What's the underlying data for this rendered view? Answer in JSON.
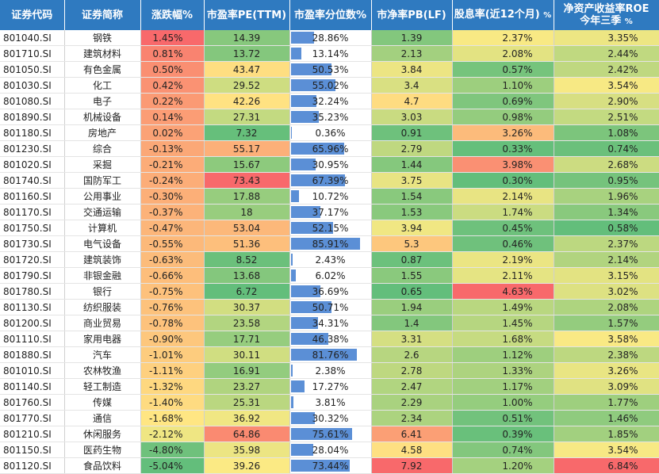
{
  "headers": {
    "code": "证券代码",
    "name": "证券简称",
    "chg": "涨跌幅%",
    "pe": "市盈率PE(TTM)",
    "pe_pct": "市盈率分位数%",
    "pb": "市净率PB(LF)",
    "div": "股息率(近12个月)",
    "div_unit": "%",
    "roe_line1": "净资产收益率ROE",
    "roe_line2": "今年三季",
    "roe_unit": "%"
  },
  "rows": [
    {
      "code": "801040.SI",
      "name": "钢铁",
      "chg": "1.45%",
      "chg_v": 1.45,
      "pe": "14.39",
      "pe_v": 14.39,
      "pct": "28.86%",
      "pct_v": 28.86,
      "pb": "1.39",
      "pb_v": 1.39,
      "div": "2.37%",
      "div_v": 2.37,
      "roe": "3.35%",
      "roe_v": 3.35
    },
    {
      "code": "801710.SI",
      "name": "建筑材料",
      "chg": "0.81%",
      "chg_v": 0.81,
      "pe": "13.72",
      "pe_v": 13.72,
      "pct": "13.14%",
      "pct_v": 13.14,
      "pb": "2.13",
      "pb_v": 2.13,
      "div": "2.08%",
      "div_v": 2.08,
      "roe": "2.44%",
      "roe_v": 2.44
    },
    {
      "code": "801050.SI",
      "name": "有色金属",
      "chg": "0.50%",
      "chg_v": 0.5,
      "pe": "43.47",
      "pe_v": 43.47,
      "pct": "50.53%",
      "pct_v": 50.53,
      "pb": "3.84",
      "pb_v": 3.84,
      "div": "0.57%",
      "div_v": 0.57,
      "roe": "2.42%",
      "roe_v": 2.42
    },
    {
      "code": "801030.SI",
      "name": "化工",
      "chg": "0.42%",
      "chg_v": 0.42,
      "pe": "29.52",
      "pe_v": 29.52,
      "pct": "55.02%",
      "pct_v": 55.02,
      "pb": "3.4",
      "pb_v": 3.4,
      "div": "1.10%",
      "div_v": 1.1,
      "roe": "3.54%",
      "roe_v": 3.54
    },
    {
      "code": "801080.SI",
      "name": "电子",
      "chg": "0.22%",
      "chg_v": 0.22,
      "pe": "42.26",
      "pe_v": 42.26,
      "pct": "32.24%",
      "pct_v": 32.24,
      "pb": "4.7",
      "pb_v": 4.7,
      "div": "0.69%",
      "div_v": 0.69,
      "roe": "2.90%",
      "roe_v": 2.9
    },
    {
      "code": "801890.SI",
      "name": "机械设备",
      "chg": "0.14%",
      "chg_v": 0.14,
      "pe": "27.31",
      "pe_v": 27.31,
      "pct": "35.23%",
      "pct_v": 35.23,
      "pb": "3.03",
      "pb_v": 3.03,
      "div": "0.98%",
      "div_v": 0.98,
      "roe": "2.51%",
      "roe_v": 2.51
    },
    {
      "code": "801180.SI",
      "name": "房地产",
      "chg": "0.02%",
      "chg_v": 0.02,
      "pe": "7.32",
      "pe_v": 7.32,
      "pct": "0.36%",
      "pct_v": 0.36,
      "pb": "0.91",
      "pb_v": 0.91,
      "div": "3.26%",
      "div_v": 3.26,
      "roe": "1.08%",
      "roe_v": 1.08
    },
    {
      "code": "801230.SI",
      "name": "综合",
      "chg": "-0.13%",
      "chg_v": -0.13,
      "pe": "55.17",
      "pe_v": 55.17,
      "pct": "65.96%",
      "pct_v": 65.96,
      "pb": "2.79",
      "pb_v": 2.79,
      "div": "0.33%",
      "div_v": 0.33,
      "roe": "0.74%",
      "roe_v": 0.74
    },
    {
      "code": "801020.SI",
      "name": "采掘",
      "chg": "-0.21%",
      "chg_v": -0.21,
      "pe": "15.67",
      "pe_v": 15.67,
      "pct": "30.95%",
      "pct_v": 30.95,
      "pb": "1.44",
      "pb_v": 1.44,
      "div": "3.98%",
      "div_v": 3.98,
      "roe": "2.68%",
      "roe_v": 2.68
    },
    {
      "code": "801740.SI",
      "name": "国防军工",
      "chg": "-0.24%",
      "chg_v": -0.24,
      "pe": "73.43",
      "pe_v": 73.43,
      "pct": "67.39%",
      "pct_v": 67.39,
      "pb": "3.75",
      "pb_v": 3.75,
      "div": "0.30%",
      "div_v": 0.3,
      "roe": "0.95%",
      "roe_v": 0.95
    },
    {
      "code": "801160.SI",
      "name": "公用事业",
      "chg": "-0.30%",
      "chg_v": -0.3,
      "pe": "17.88",
      "pe_v": 17.88,
      "pct": "10.72%",
      "pct_v": 10.72,
      "pb": "1.54",
      "pb_v": 1.54,
      "div": "2.14%",
      "div_v": 2.14,
      "roe": "1.96%",
      "roe_v": 1.96
    },
    {
      "code": "801170.SI",
      "name": "交通运输",
      "chg": "-0.37%",
      "chg_v": -0.37,
      "pe": "18",
      "pe_v": 18,
      "pct": "37.17%",
      "pct_v": 37.17,
      "pb": "1.53",
      "pb_v": 1.53,
      "div": "1.74%",
      "div_v": 1.74,
      "roe": "1.34%",
      "roe_v": 1.34
    },
    {
      "code": "801750.SI",
      "name": "计算机",
      "chg": "-0.47%",
      "chg_v": -0.47,
      "pe": "53.04",
      "pe_v": 53.04,
      "pct": "52.15%",
      "pct_v": 52.15,
      "pb": "3.94",
      "pb_v": 3.94,
      "div": "0.45%",
      "div_v": 0.45,
      "roe": "0.58%",
      "roe_v": 0.58
    },
    {
      "code": "801730.SI",
      "name": "电气设备",
      "chg": "-0.55%",
      "chg_v": -0.55,
      "pe": "51.36",
      "pe_v": 51.36,
      "pct": "85.91%",
      "pct_v": 85.91,
      "pb": "5.3",
      "pb_v": 5.3,
      "div": "0.46%",
      "div_v": 0.46,
      "roe": "2.37%",
      "roe_v": 2.37
    },
    {
      "code": "801720.SI",
      "name": "建筑装饰",
      "chg": "-0.63%",
      "chg_v": -0.63,
      "pe": "8.52",
      "pe_v": 8.52,
      "pct": "2.43%",
      "pct_v": 2.43,
      "pb": "0.87",
      "pb_v": 0.87,
      "div": "2.19%",
      "div_v": 2.19,
      "roe": "2.14%",
      "roe_v": 2.14
    },
    {
      "code": "801790.SI",
      "name": "非银金融",
      "chg": "-0.66%",
      "chg_v": -0.66,
      "pe": "13.68",
      "pe_v": 13.68,
      "pct": "6.02%",
      "pct_v": 6.02,
      "pb": "1.55",
      "pb_v": 1.55,
      "div": "2.11%",
      "div_v": 2.11,
      "roe": "3.15%",
      "roe_v": 3.15
    },
    {
      "code": "801780.SI",
      "name": "银行",
      "chg": "-0.75%",
      "chg_v": -0.75,
      "pe": "6.72",
      "pe_v": 6.72,
      "pct": "36.69%",
      "pct_v": 36.69,
      "pb": "0.65",
      "pb_v": 0.65,
      "div": "4.63%",
      "div_v": 4.63,
      "roe": "3.02%",
      "roe_v": 3.02
    },
    {
      "code": "801130.SI",
      "name": "纺织服装",
      "chg": "-0.76%",
      "chg_v": -0.76,
      "pe": "30.37",
      "pe_v": 30.37,
      "pct": "50.71%",
      "pct_v": 50.71,
      "pb": "1.94",
      "pb_v": 1.94,
      "div": "1.49%",
      "div_v": 1.49,
      "roe": "2.08%",
      "roe_v": 2.08
    },
    {
      "code": "801200.SI",
      "name": "商业贸易",
      "chg": "-0.78%",
      "chg_v": -0.78,
      "pe": "23.58",
      "pe_v": 23.58,
      "pct": "34.31%",
      "pct_v": 34.31,
      "pb": "1.4",
      "pb_v": 1.4,
      "div": "1.45%",
      "div_v": 1.45,
      "roe": "1.57%",
      "roe_v": 1.57
    },
    {
      "code": "801110.SI",
      "name": "家用电器",
      "chg": "-0.90%",
      "chg_v": -0.9,
      "pe": "17.71",
      "pe_v": 17.71,
      "pct": "46.38%",
      "pct_v": 46.38,
      "pb": "3.31",
      "pb_v": 3.31,
      "div": "1.68%",
      "div_v": 1.68,
      "roe": "3.58%",
      "roe_v": 3.58
    },
    {
      "code": "801880.SI",
      "name": "汽车",
      "chg": "-1.01%",
      "chg_v": -1.01,
      "pe": "30.11",
      "pe_v": 30.11,
      "pct": "81.76%",
      "pct_v": 81.76,
      "pb": "2.6",
      "pb_v": 2.6,
      "div": "1.12%",
      "div_v": 1.12,
      "roe": "2.38%",
      "roe_v": 2.38
    },
    {
      "code": "801010.SI",
      "name": "农林牧渔",
      "chg": "-1.11%",
      "chg_v": -1.11,
      "pe": "16.91",
      "pe_v": 16.91,
      "pct": "2.38%",
      "pct_v": 2.38,
      "pb": "2.78",
      "pb_v": 2.78,
      "div": "1.33%",
      "div_v": 1.33,
      "roe": "3.26%",
      "roe_v": 3.26
    },
    {
      "code": "801140.SI",
      "name": "轻工制造",
      "chg": "-1.32%",
      "chg_v": -1.32,
      "pe": "23.27",
      "pe_v": 23.27,
      "pct": "17.27%",
      "pct_v": 17.27,
      "pb": "2.47",
      "pb_v": 2.47,
      "div": "1.17%",
      "div_v": 1.17,
      "roe": "3.09%",
      "roe_v": 3.09
    },
    {
      "code": "801760.SI",
      "name": "传媒",
      "chg": "-1.40%",
      "chg_v": -1.4,
      "pe": "25.31",
      "pe_v": 25.31,
      "pct": "3.81%",
      "pct_v": 3.81,
      "pb": "2.29",
      "pb_v": 2.29,
      "div": "1.00%",
      "div_v": 1.0,
      "roe": "1.77%",
      "roe_v": 1.77
    },
    {
      "code": "801770.SI",
      "name": "通信",
      "chg": "-1.68%",
      "chg_v": -1.68,
      "pe": "36.92",
      "pe_v": 36.92,
      "pct": "30.32%",
      "pct_v": 30.32,
      "pb": "2.34",
      "pb_v": 2.34,
      "div": "0.51%",
      "div_v": 0.51,
      "roe": "1.46%",
      "roe_v": 1.46
    },
    {
      "code": "801210.SI",
      "name": "休闲服务",
      "chg": "-2.12%",
      "chg_v": -2.12,
      "pe": "64.86",
      "pe_v": 64.86,
      "pct": "75.61%",
      "pct_v": 75.61,
      "pb": "6.41",
      "pb_v": 6.41,
      "div": "0.39%",
      "div_v": 0.39,
      "roe": "1.85%",
      "roe_v": 1.85
    },
    {
      "code": "801150.SI",
      "name": "医药生物",
      "chg": "-4.80%",
      "chg_v": -4.8,
      "pe": "35.98",
      "pe_v": 35.98,
      "pct": "28.04%",
      "pct_v": 28.04,
      "pb": "4.58",
      "pb_v": 4.58,
      "div": "0.74%",
      "div_v": 0.74,
      "roe": "3.54%",
      "roe_v": 3.54
    },
    {
      "code": "801120.SI",
      "name": "食品饮料",
      "chg": "-5.04%",
      "chg_v": -5.04,
      "pe": "39.26",
      "pe_v": 39.26,
      "pct": "73.44%",
      "pct_v": 73.44,
      "pb": "7.92",
      "pb_v": 7.92,
      "div": "1.20%",
      "div_v": 1.2,
      "roe": "6.84%",
      "roe_v": 6.84
    }
  ],
  "colors": {
    "header_bg": "#2f7ac0",
    "bar_fill": "#5b8fd6",
    "high": "#f8696b",
    "mid": "#ffeb84",
    "low": "#63be7b"
  }
}
